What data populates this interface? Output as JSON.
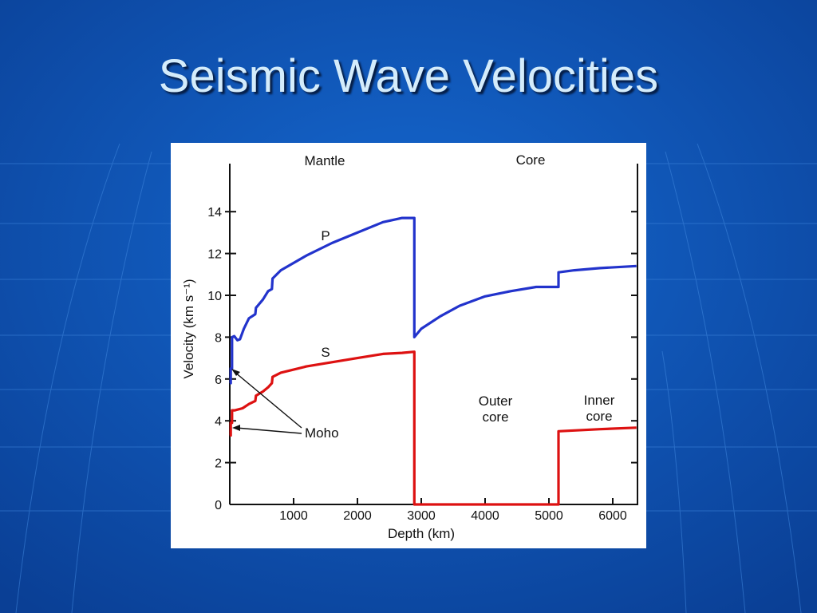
{
  "slide": {
    "title": "Seismic Wave Velocities",
    "background_color": "#0b4fb0"
  },
  "chart_data": {
    "type": "line",
    "xlabel": "Depth (km)",
    "ylabel": "Velocity (km s⁻¹)",
    "xlim": [
      0,
      6371
    ],
    "ylim": [
      0,
      16
    ],
    "x_ticks": [
      "1000",
      "2000",
      "3000",
      "4000",
      "5000",
      "6000"
    ],
    "y_ticks": [
      "0",
      "2",
      "4",
      "6",
      "8",
      "10",
      "12",
      "14"
    ],
    "grid": false,
    "legend": "none",
    "regions": [
      {
        "label": "Mantle",
        "x_center": 1800
      },
      {
        "label": "Core",
        "x_center": 4700
      }
    ],
    "region_labels": {
      "outer_core": [
        "Outer",
        "core"
      ],
      "inner_core": [
        "Inner",
        "core"
      ]
    },
    "annotations": {
      "moho": "Moho"
    },
    "series": [
      {
        "name": "P",
        "color": "#2233cc",
        "x": [
          0,
          15,
          15,
          35,
          35,
          70,
          120,
          160,
          220,
          300,
          400,
          410,
          520,
          600,
          660,
          670,
          800,
          1200,
          1600,
          2000,
          2400,
          2700,
          2891,
          2891,
          3000,
          3300,
          3600,
          4000,
          4400,
          4800,
          5150,
          5150,
          5400,
          5800,
          6371
        ],
        "y": [
          5.8,
          5.8,
          6.5,
          6.5,
          8.0,
          8.05,
          7.85,
          7.9,
          8.4,
          8.9,
          9.1,
          9.4,
          9.8,
          10.2,
          10.3,
          10.8,
          11.2,
          11.9,
          12.5,
          13.0,
          13.5,
          13.7,
          13.7,
          8.0,
          8.4,
          9.0,
          9.5,
          9.95,
          10.2,
          10.4,
          10.4,
          11.1,
          11.2,
          11.3,
          11.4
        ]
      },
      {
        "name": "S",
        "color": "#dd1111",
        "x": [
          0,
          15,
          15,
          35,
          35,
          80,
          200,
          300,
          400,
          410,
          520,
          600,
          660,
          670,
          800,
          1200,
          1600,
          2000,
          2400,
          2700,
          2891,
          2891,
          5150,
          5150,
          5800,
          6371
        ],
        "y": [
          3.3,
          3.3,
          3.9,
          3.9,
          4.5,
          4.5,
          4.6,
          4.8,
          4.95,
          5.2,
          5.4,
          5.6,
          5.8,
          6.1,
          6.3,
          6.6,
          6.8,
          7.0,
          7.2,
          7.25,
          7.3,
          0,
          0,
          3.5,
          3.6,
          3.67
        ]
      }
    ]
  }
}
